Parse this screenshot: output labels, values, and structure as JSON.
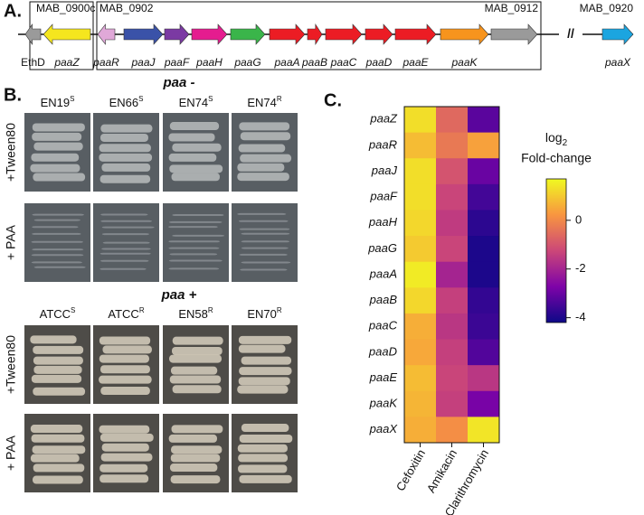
{
  "panel_labels": [
    "A.",
    "B.",
    "C."
  ],
  "gene_map": {
    "locus_labels": [
      "MAB_0900c",
      "MAB_0902",
      "MAB_0912",
      "MAB_0920"
    ],
    "break_mark": "//",
    "genes": [
      {
        "label": "EthD",
        "color": "#9a9a9a",
        "direction": "left"
      },
      {
        "label": "paaZ",
        "color": "#f5e61e",
        "direction": "left"
      },
      {
        "label": "paaR",
        "color": "#e0a8d8",
        "direction": "left"
      },
      {
        "label": "paaJ",
        "color": "#3a52a8",
        "direction": "right"
      },
      {
        "label": "paaF",
        "color": "#7b3aa3",
        "direction": "right"
      },
      {
        "label": "paaH",
        "color": "#e51c8f",
        "direction": "right"
      },
      {
        "label": "paaG",
        "color": "#3ab54a",
        "direction": "right"
      },
      {
        "label": "paaA",
        "color": "#ec1c24",
        "direction": "right"
      },
      {
        "label": "paaB",
        "color": "#ec1c24",
        "direction": "right"
      },
      {
        "label": "paaC",
        "color": "#ec1c24",
        "direction": "right"
      },
      {
        "label": "paaD",
        "color": "#ec1c24",
        "direction": "right"
      },
      {
        "label": "paaE",
        "color": "#ec1c24",
        "direction": "right"
      },
      {
        "label": "paaK",
        "color": "#f7941d",
        "direction": "right"
      },
      {
        "label": null,
        "color": "#9a9a9a",
        "direction": "right"
      },
      {
        "label": "paaX",
        "color": "#1ba5e0",
        "direction": "right"
      }
    ]
  },
  "plates": {
    "row_labels": [
      "+Tween80",
      "+ PAA"
    ],
    "groups": [
      {
        "title": "paa -",
        "columns": [
          {
            "name": "EN19",
            "sup": "S"
          },
          {
            "name": "EN66",
            "sup": "S"
          },
          {
            "name": "EN74",
            "sup": "S"
          },
          {
            "name": "EN74",
            "sup": "R"
          }
        ]
      },
      {
        "title": "paa +",
        "columns": [
          {
            "name": "ATCC",
            "sup": "S"
          },
          {
            "name": "ATCC",
            "sup": "R"
          },
          {
            "name": "EN58",
            "sup": "R"
          },
          {
            "name": "EN70",
            "sup": "R"
          }
        ]
      }
    ]
  },
  "chart_data": {
    "type": "heatmap",
    "rows": [
      "paaZ",
      "paaR",
      "paaJ",
      "paaF",
      "paaH",
      "paaG",
      "paaA",
      "paaB",
      "paaC",
      "paaD",
      "paaE",
      "paaK",
      "paaX"
    ],
    "columns": [
      "Cefoxitin",
      "Amikacin",
      "Clarithromycin"
    ],
    "values": [
      [
        1.3,
        -0.6,
        -3.2
      ],
      [
        0.8,
        -0.3,
        0.4
      ],
      [
        1.3,
        -1.0,
        -3.0
      ],
      [
        1.3,
        -1.3,
        -3.5
      ],
      [
        1.2,
        -1.5,
        -3.8
      ],
      [
        1.0,
        -1.3,
        -4.0
      ],
      [
        1.5,
        -2.0,
        -4.0
      ],
      [
        1.2,
        -1.4,
        -3.7
      ],
      [
        0.6,
        -1.6,
        -3.6
      ],
      [
        0.5,
        -1.4,
        -3.3
      ],
      [
        0.8,
        -1.3,
        -1.6
      ],
      [
        0.7,
        -1.4,
        -2.8
      ],
      [
        0.6,
        0.1,
        1.4
      ]
    ],
    "colorbar_title": "log",
    "colorbar_title_sub": "2",
    "colorbar_title_line2": "Fold-change",
    "colormap": "plasma",
    "clim": [
      -4.2,
      1.7
    ],
    "cticks": [
      0,
      -2,
      -4
    ]
  }
}
